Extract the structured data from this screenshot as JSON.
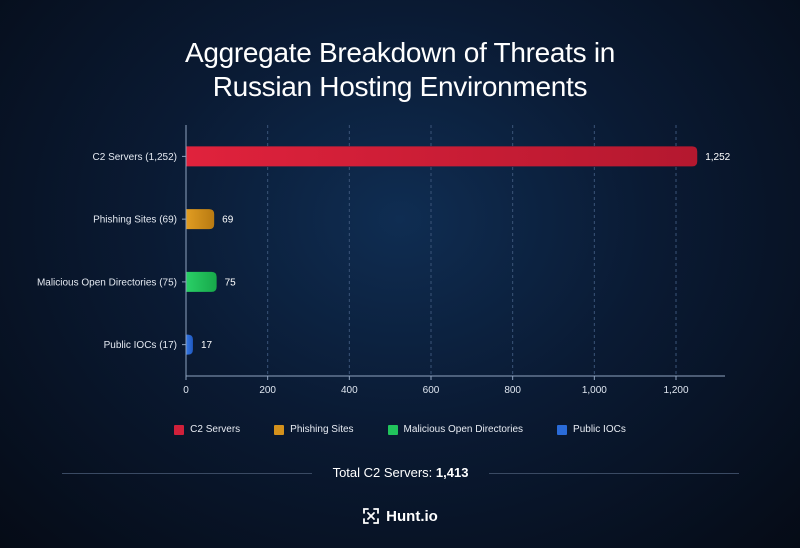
{
  "chart_data": {
    "type": "bar",
    "orientation": "horizontal",
    "title_line1": "Aggregate Breakdown of Threats in",
    "title_line2": "Russian Hosting Environments",
    "categories": [
      "C2 Servers (1,252)",
      "Phishing Sites (69)",
      "Malicious Open Directories (75)",
      "Public IOCs (17)"
    ],
    "values": [
      1252,
      69,
      75,
      17
    ],
    "value_labels": [
      "1,252",
      "69",
      "75",
      "17"
    ],
    "colors": [
      "#d0203a",
      "#d4911c",
      "#21c45c",
      "#2a6bd8"
    ],
    "xlim": [
      0,
      1320
    ],
    "xticks": [
      0,
      200,
      400,
      600,
      800,
      1000,
      1200
    ],
    "xtick_labels": [
      "0",
      "200",
      "400",
      "600",
      "800",
      "1,000",
      "1,200"
    ],
    "grid": true,
    "legend": [
      "C2 Servers",
      "Phishing Sites",
      "Malicious Open Directories",
      "Public IOCs"
    ],
    "legend_position": "bottom"
  },
  "footer": {
    "total_label": "Total C2 Servers:",
    "total_value": "1,413",
    "brand": "Hunt.io"
  }
}
